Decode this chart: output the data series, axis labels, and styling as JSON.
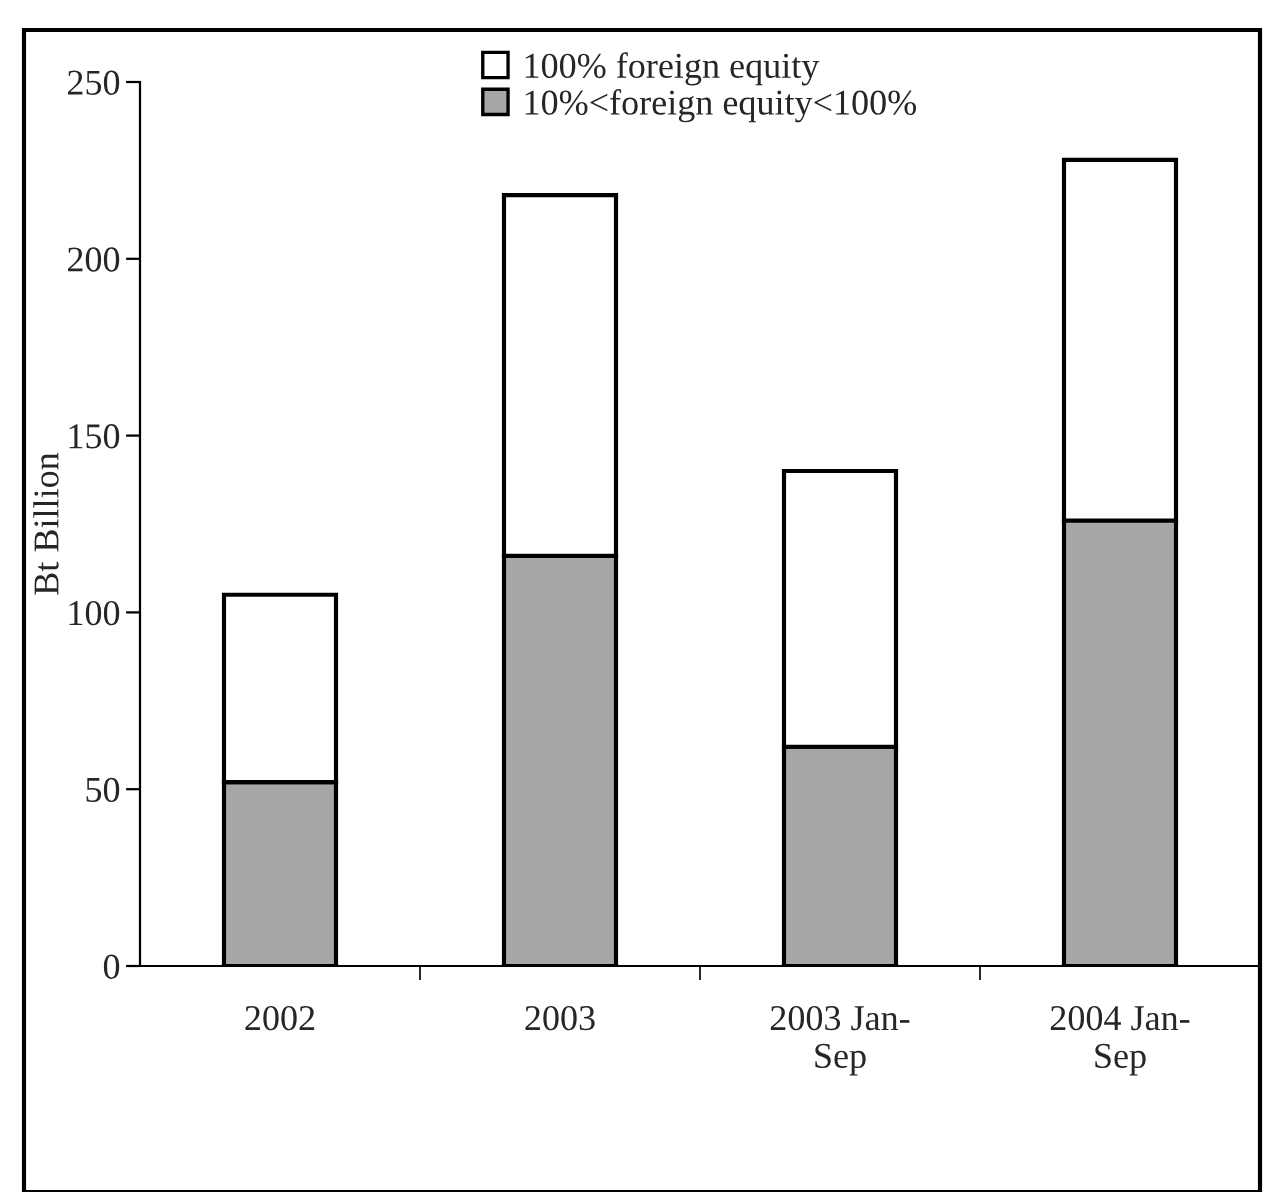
{
  "chart_data": {
    "type": "bar",
    "stacked": true,
    "ylabel": "Bt Billion",
    "categories": [
      "2002",
      "2003",
      "2003 Jan-\nSep",
      "2004 Jan-\nSep"
    ],
    "series": [
      {
        "name": "10%<foreign equity<100%",
        "color": "#a6a6a6",
        "values": [
          52,
          116,
          62,
          126
        ]
      },
      {
        "name": "100% foreign equity",
        "color": "#ffffff",
        "values": [
          53,
          102,
          78,
          102
        ]
      }
    ],
    "ylim": [
      0,
      250
    ],
    "yticks": [
      0,
      50,
      100,
      150,
      200,
      250
    ],
    "grid": false,
    "legend": "top"
  }
}
